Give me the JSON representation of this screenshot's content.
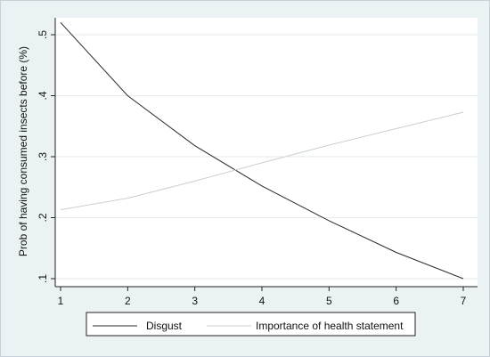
{
  "chart_data": {
    "type": "line",
    "title": "",
    "xlabel": "",
    "ylabel": "Prob of having consumed insects before (%)",
    "x": [
      1,
      2,
      3,
      4,
      5,
      6,
      7
    ],
    "xlim": [
      1,
      7
    ],
    "ylim": [
      0.1,
      0.52
    ],
    "x_ticks": [
      "1",
      "2",
      "3",
      "4",
      "5",
      "6",
      "7"
    ],
    "y_ticks": [
      {
        "value": 0.1,
        "label": ".1"
      },
      {
        "value": 0.2,
        "label": ".2"
      },
      {
        "value": 0.3,
        "label": ".3"
      },
      {
        "value": 0.4,
        "label": ".4"
      },
      {
        "value": 0.5,
        "label": ".5"
      }
    ],
    "grid": true,
    "legend_position": "bottom",
    "series": [
      {
        "name": "Disgust",
        "color": "#2b2b2b",
        "values": [
          0.52,
          0.4,
          0.318,
          0.252,
          0.195,
          0.143,
          0.1
        ]
      },
      {
        "name": "Importance of health statement",
        "color": "#c9cfd3",
        "values": [
          0.213,
          0.232,
          0.26,
          0.29,
          0.319,
          0.346,
          0.373
        ]
      }
    ]
  }
}
